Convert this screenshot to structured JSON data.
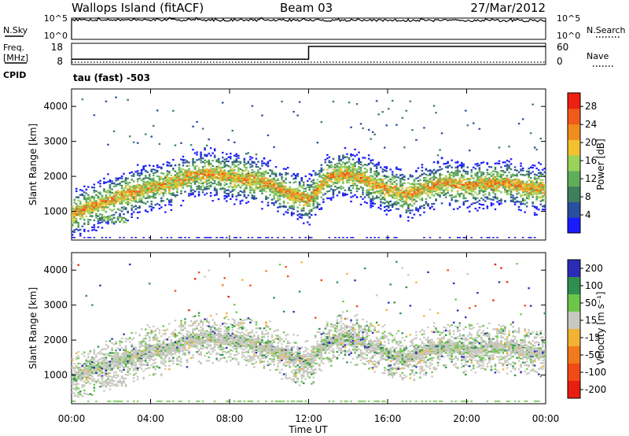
{
  "header": {
    "station": "Wallops Island (fitACF)",
    "beam": "Beam 03",
    "date": "27/Mar/2012"
  },
  "side_labels": {
    "nsky": "N.Sky",
    "freq": "Freq.",
    "freq_unit": "[MHz]",
    "cpid": "CPID",
    "nsearch": "N.Search",
    "nave": "Nave",
    "cpid_value": "tau (fast) -503"
  },
  "strip_ticks": {
    "noise_left": [
      "10^5",
      "10^0"
    ],
    "noise_right": [
      "10^5",
      "10^0"
    ],
    "freq_left": [
      "18",
      "8"
    ],
    "nave_right": [
      "60",
      "0"
    ]
  },
  "chart_data": [
    {
      "type": "line",
      "name": "noise",
      "series": [
        {
          "name": "N.Sky",
          "style": "solid",
          "log_level_start": 4.6,
          "log_level_end": 4.4
        },
        {
          "name": "N.Search",
          "style": "dotted"
        }
      ],
      "ylim_log": [
        0,
        5
      ]
    },
    {
      "type": "line",
      "name": "frequency-nave",
      "series": [
        {
          "name": "Freq",
          "style": "solid",
          "x": [
            "00:00",
            "12:00",
            "12:00",
            "24:00"
          ],
          "y": [
            10.5,
            10.5,
            16.5,
            16.5
          ],
          "units": "MHz"
        },
        {
          "name": "Nave",
          "style": "dotted",
          "x": [
            "00:00",
            "24:00"
          ],
          "y": [
            0,
            0
          ]
        }
      ],
      "freq_ylim": [
        8,
        18
      ],
      "nave_ylim": [
        0,
        60
      ]
    },
    {
      "type": "heatmap",
      "name": "power",
      "ylabel": "Slant Range [km]",
      "yticks": [
        "1000",
        "2000",
        "3000",
        "4000"
      ],
      "ylim": [
        180,
        4500
      ],
      "colorbar_label": "Power [dB]",
      "colorbar_ticks": [
        "4",
        "8",
        "12",
        "16",
        "20",
        "24",
        "28"
      ],
      "colorbar_range": [
        0,
        31
      ],
      "colors": [
        "#1a1aff",
        "#2a4f9e",
        "#3f7f5e",
        "#5fae5a",
        "#9ad35a",
        "#f2c12e",
        "#f08c1e",
        "#f25a1a",
        "#ee2010"
      ],
      "scatter_band_km_by_hour": [
        [
          0,
          950
        ],
        [
          1,
          1150
        ],
        [
          2,
          1350
        ],
        [
          3,
          1550
        ],
        [
          4,
          1700
        ],
        [
          5,
          1800
        ],
        [
          6,
          2050
        ],
        [
          7,
          2100
        ],
        [
          8,
          2000
        ],
        [
          9,
          1950
        ],
        [
          10,
          1800
        ],
        [
          11,
          1550
        ],
        [
          12,
          1350
        ],
        [
          13,
          2000
        ],
        [
          14,
          2100
        ],
        [
          15,
          1900
        ],
        [
          16,
          1650
        ],
        [
          17,
          1500
        ],
        [
          18,
          1700
        ],
        [
          19,
          1850
        ],
        [
          20,
          1750
        ],
        [
          21,
          1800
        ],
        [
          22,
          1850
        ],
        [
          23,
          1700
        ],
        [
          24,
          1650
        ]
      ]
    },
    {
      "type": "heatmap",
      "name": "velocity",
      "ylabel": "Slant Range [km]",
      "xlabel": "Time UT",
      "xticks": [
        "00:00",
        "04:00",
        "08:00",
        "12:00",
        "16:00",
        "20:00",
        "00:00"
      ],
      "yticks": [
        "1000",
        "2000",
        "3000",
        "4000"
      ],
      "ylim": [
        180,
        4500
      ],
      "colorbar_label": "Velocity [m s⁻¹]",
      "colorbar_ticks": [
        "200",
        "100",
        "50",
        "15",
        "-15",
        "-50",
        "-100",
        "-200"
      ],
      "colors": [
        "#2b2bb8",
        "#2f8f4f",
        "#6cc64a",
        "#c8c8c0",
        "#f2b233",
        "#f07a1c",
        "#f24a14",
        "#e81e10"
      ]
    }
  ]
}
